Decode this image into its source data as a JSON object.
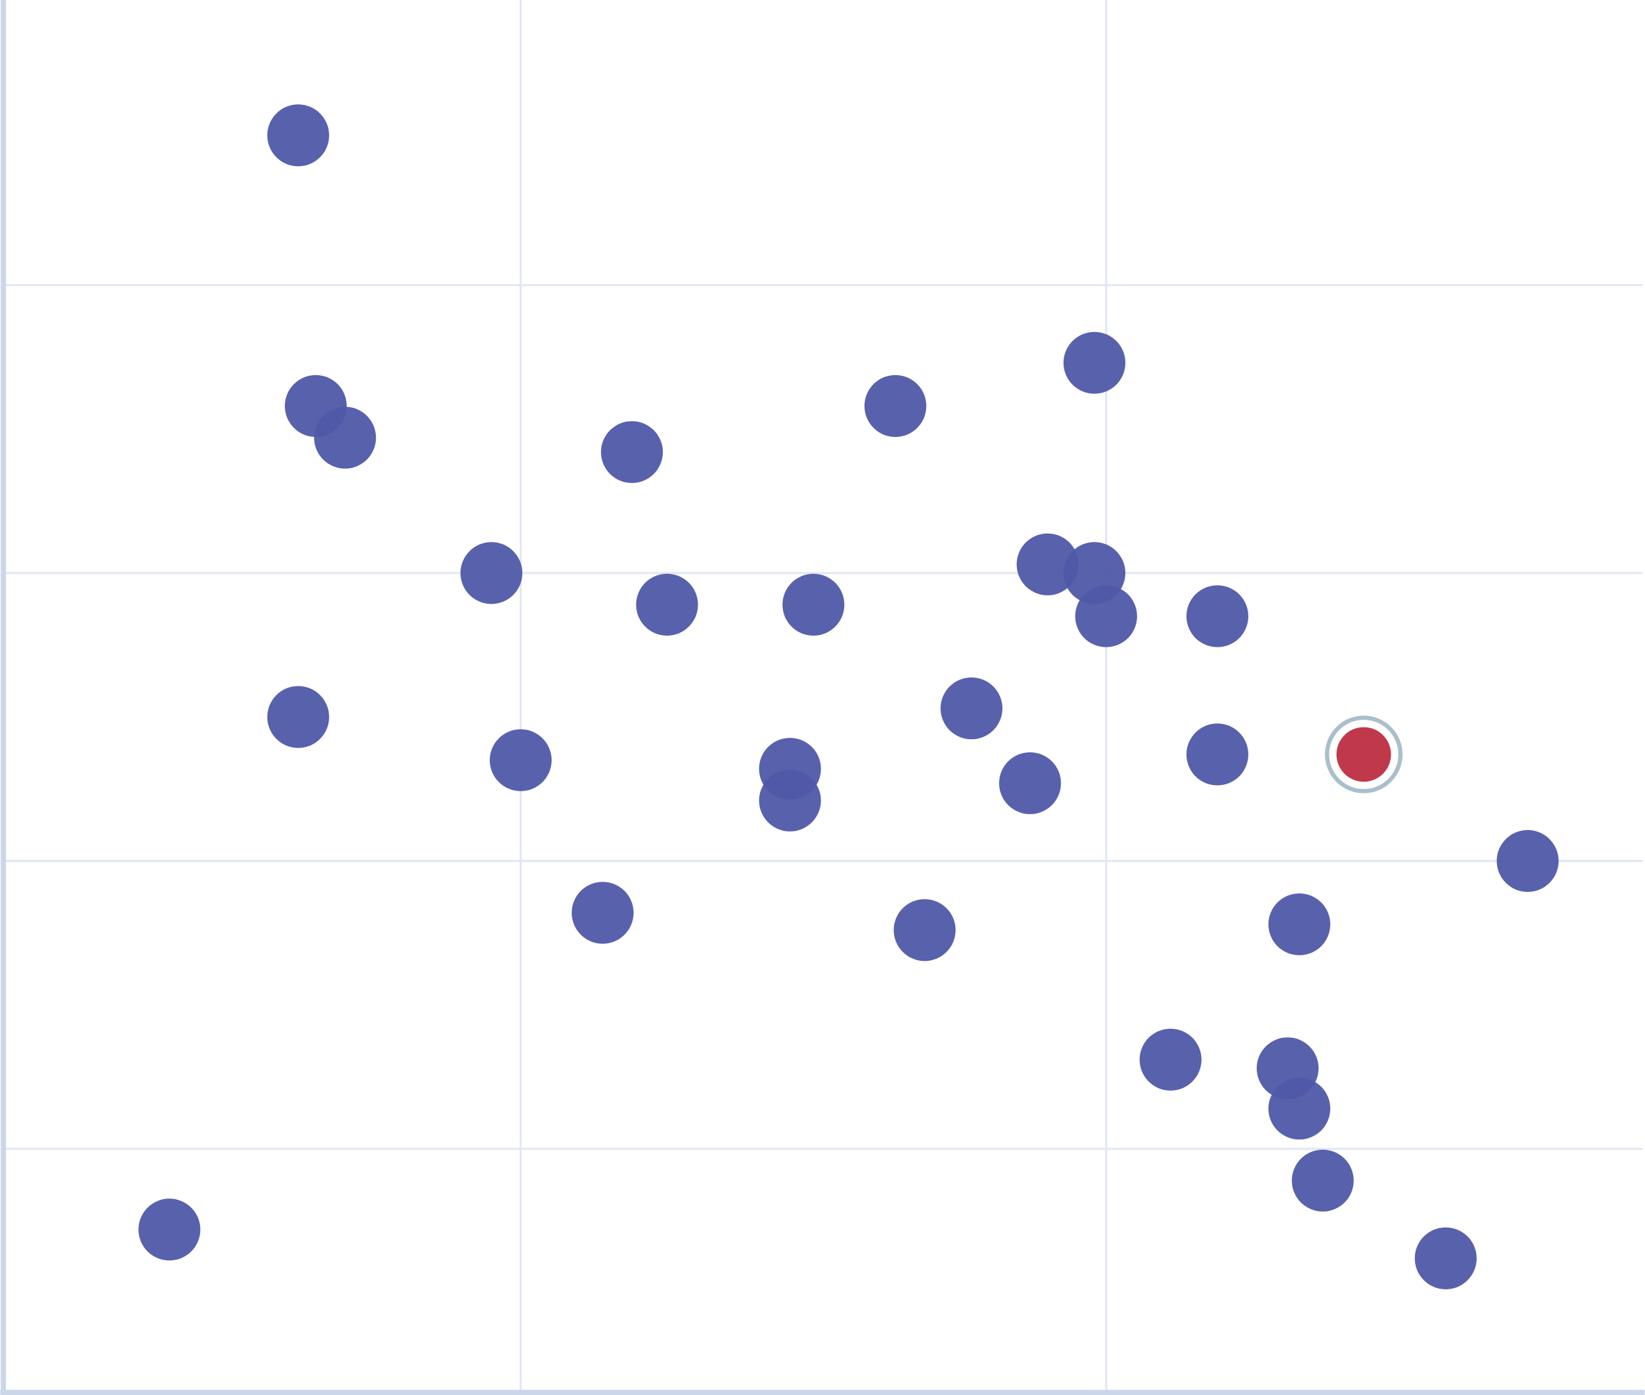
{
  "chart_data": {
    "type": "scatter",
    "title": "",
    "xlabel": "",
    "ylabel": "",
    "xlim": [
      0.12,
      2.92
    ],
    "ylim": [
      0.16,
      4.99
    ],
    "x_gridlines": [
      1,
      2
    ],
    "y_gridlines": [
      1,
      2,
      3,
      4
    ],
    "grid": true,
    "tick_labels_shown": false,
    "legend": "none",
    "colors": {
      "point": "#4f58a8",
      "highlight_point": "#c0394b",
      "highlight_ring": "#a9bfcc",
      "axis": "#ccd6ea",
      "grid": "#e3e7f3"
    },
    "points": [
      {
        "x": 0.62,
        "y": 4.52
      },
      {
        "x": 0.65,
        "y": 3.58
      },
      {
        "x": 0.7,
        "y": 3.47
      },
      {
        "x": 1.19,
        "y": 3.42
      },
      {
        "x": 1.64,
        "y": 3.58
      },
      {
        "x": 1.98,
        "y": 3.73
      },
      {
        "x": 0.95,
        "y": 3.0
      },
      {
        "x": 1.25,
        "y": 2.89
      },
      {
        "x": 1.5,
        "y": 2.89
      },
      {
        "x": 1.9,
        "y": 3.03
      },
      {
        "x": 1.98,
        "y": 3.0
      },
      {
        "x": 2.0,
        "y": 2.85
      },
      {
        "x": 2.19,
        "y": 2.85
      },
      {
        "x": 0.62,
        "y": 2.5
      },
      {
        "x": 1.0,
        "y": 2.35
      },
      {
        "x": 1.46,
        "y": 2.32
      },
      {
        "x": 1.46,
        "y": 2.21
      },
      {
        "x": 1.77,
        "y": 2.53
      },
      {
        "x": 1.87,
        "y": 2.27
      },
      {
        "x": 2.19,
        "y": 2.37
      },
      {
        "x": 2.44,
        "y": 2.37,
        "highlighted": true
      },
      {
        "x": 2.72,
        "y": 2.0
      },
      {
        "x": 1.14,
        "y": 1.82
      },
      {
        "x": 1.69,
        "y": 1.76
      },
      {
        "x": 2.33,
        "y": 1.78
      },
      {
        "x": 2.11,
        "y": 1.31
      },
      {
        "x": 2.31,
        "y": 1.28
      },
      {
        "x": 2.33,
        "y": 1.14
      },
      {
        "x": 2.37,
        "y": 0.89
      },
      {
        "x": 0.4,
        "y": 0.72
      },
      {
        "x": 2.58,
        "y": 0.62
      }
    ]
  }
}
